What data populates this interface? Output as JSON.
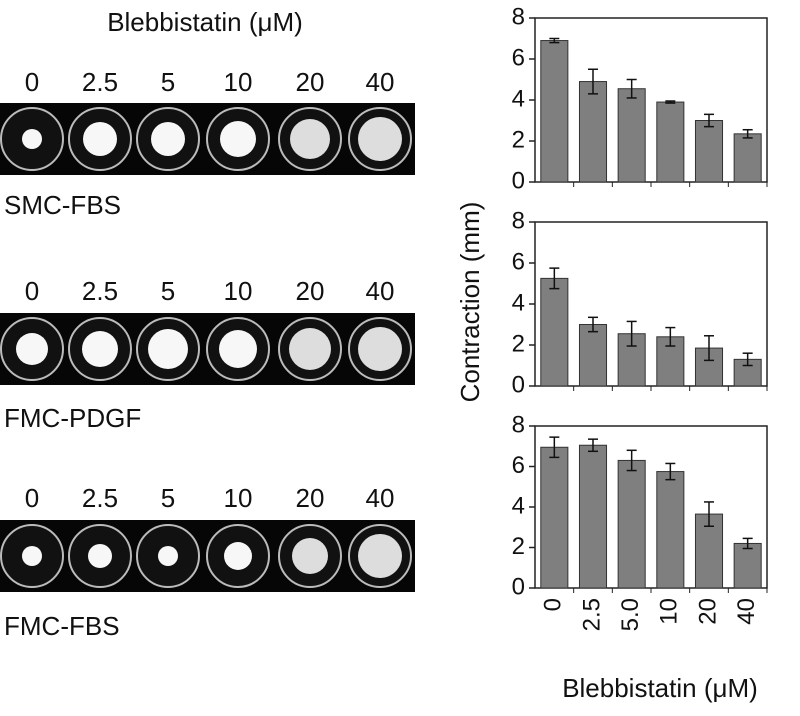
{
  "header": {
    "title": "Blebbistatin (μM)"
  },
  "panels": [
    {
      "label": "SMC-FBS",
      "wells": [
        "0",
        "2.5",
        "5",
        "10",
        "20",
        "40"
      ]
    },
    {
      "label": "FMC-PDGF",
      "wells": [
        "0",
        "2.5",
        "5",
        "10",
        "20",
        "40"
      ]
    },
    {
      "label": "FMC-FBS",
      "wells": [
        "0",
        "2.5",
        "5",
        "10",
        "20",
        "40"
      ]
    }
  ],
  "chart_data": [
    {
      "type": "bar",
      "color": "#7f7f7f",
      "ylim": [
        0,
        8
      ],
      "yticks": [
        0,
        2,
        4,
        6,
        8
      ],
      "values": [
        6.9,
        4.9,
        4.55,
        3.9,
        3.0,
        2.35
      ],
      "errors": [
        0.1,
        0.6,
        0.45,
        0.05,
        0.3,
        0.2
      ]
    },
    {
      "type": "bar",
      "color": "#7f7f7f",
      "ylim": [
        0,
        8
      ],
      "yticks": [
        0,
        2,
        4,
        6,
        8
      ],
      "ylabel": "Contraction (mm)",
      "values": [
        5.25,
        3.0,
        2.55,
        2.4,
        1.85,
        1.3
      ],
      "errors": [
        0.5,
        0.35,
        0.6,
        0.45,
        0.6,
        0.3
      ]
    },
    {
      "type": "bar",
      "color": "#7f7f7f",
      "ylim": [
        0,
        8
      ],
      "yticks": [
        0,
        2,
        4,
        6,
        8
      ],
      "xlabel": "Blebbistatin (μM)",
      "categories": [
        "0",
        "2.5",
        "5.0",
        "10",
        "20",
        "40"
      ],
      "values": [
        6.95,
        7.05,
        6.3,
        5.75,
        3.65,
        2.2
      ],
      "errors": [
        0.5,
        0.3,
        0.5,
        0.4,
        0.6,
        0.25
      ]
    }
  ]
}
